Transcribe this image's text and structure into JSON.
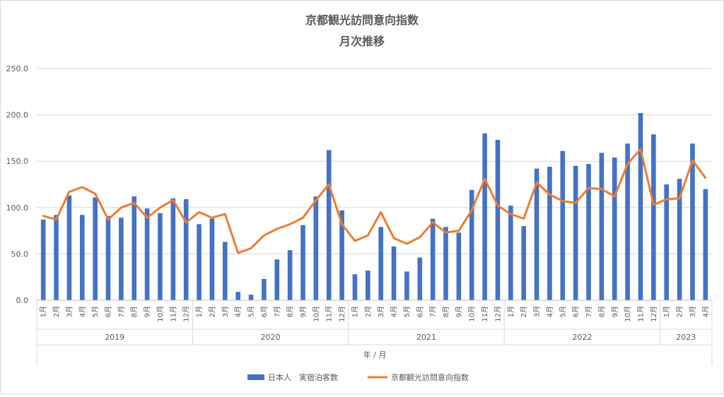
{
  "chart_data": {
    "type": "bar",
    "title": "京都観光訪問意向指数",
    "subtitle": "月次推移",
    "xlabel": "年 / 月",
    "ylabel": "",
    "ylim": [
      0,
      250
    ],
    "y_ticks": [
      "0.0",
      "50.0",
      "100.0",
      "150.0",
      "200.0",
      "250.0"
    ],
    "grid": true,
    "legend_position": "bottom",
    "month_labels": [
      "1月",
      "2月",
      "3月",
      "4月",
      "5月",
      "6月",
      "7月",
      "8月",
      "9月",
      "10月",
      "11月",
      "12月",
      "1月",
      "2月",
      "3月",
      "4月",
      "5月",
      "6月",
      "7月",
      "8月",
      "9月",
      "10月",
      "11月",
      "12月",
      "1月",
      "2月",
      "3月",
      "4月",
      "5月",
      "6月",
      "7月",
      "8月",
      "9月",
      "10月",
      "11月",
      "12月",
      "1月",
      "2月",
      "3月",
      "4月",
      "5月",
      "6月",
      "7月",
      "8月",
      "9月",
      "10月",
      "11月",
      "12月",
      "1月",
      "2月",
      "3月",
      "4月"
    ],
    "year_groups": [
      {
        "label": "2019",
        "count": 12
      },
      {
        "label": "2020",
        "count": 12
      },
      {
        "label": "2021",
        "count": 12
      },
      {
        "label": "2022",
        "count": 12
      },
      {
        "label": "2023",
        "count": 4
      }
    ],
    "series": [
      {
        "name": "日本人　実宿泊客数",
        "type": "bar",
        "color": "#4472C4",
        "values": [
          87,
          92,
          113,
          92,
          111,
          91,
          89,
          112,
          99,
          94,
          110,
          109,
          82,
          88,
          63,
          9,
          6,
          23,
          44,
          54,
          81,
          112,
          162,
          97,
          28,
          32,
          79,
          58,
          31,
          46,
          88,
          79,
          73,
          119,
          180,
          173,
          102,
          80,
          142,
          144,
          161,
          145,
          147,
          159,
          154,
          169,
          202,
          179,
          125,
          131,
          169,
          120
        ]
      },
      {
        "name": "京都観光訪問意向指数",
        "type": "line",
        "color": "#ED7D31",
        "values": [
          91,
          87,
          117,
          122,
          115,
          87,
          100,
          105,
          89,
          100,
          108,
          84,
          95,
          89,
          93,
          51,
          56,
          70,
          77,
          82,
          89,
          108,
          125,
          82,
          64,
          70,
          95,
          67,
          61,
          68,
          84,
          73,
          75,
          97,
          131,
          102,
          93,
          88,
          127,
          114,
          107,
          105,
          121,
          120,
          112,
          147,
          163,
          103,
          109,
          110,
          151,
          132
        ]
      }
    ]
  }
}
